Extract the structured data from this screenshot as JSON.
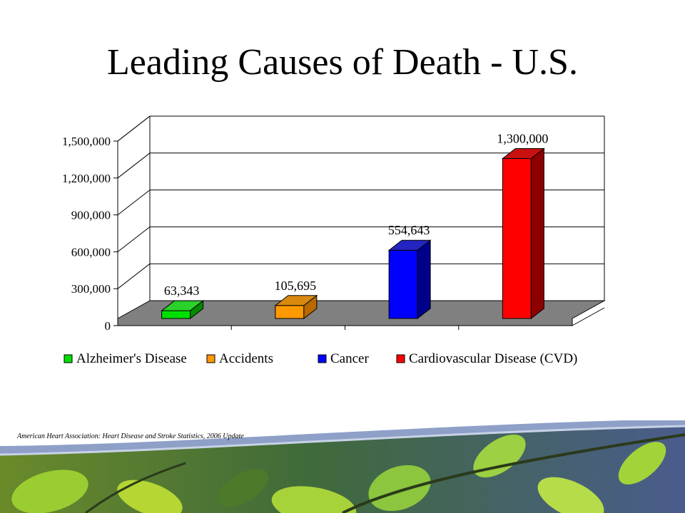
{
  "slide": {
    "title": "Leading Causes of Death - U.S.",
    "source": "American Heart Association: Heart Disease and Stroke Statistics, 2006 Update"
  },
  "chart_data": {
    "type": "bar",
    "title": "",
    "xlabel": "",
    "ylabel": "",
    "ylim": [
      0,
      1500000
    ],
    "yticks": [
      0,
      300000,
      600000,
      900000,
      1200000,
      1500000
    ],
    "ytick_labels": [
      "0",
      "300,000",
      "600,000",
      "900,000",
      "1,200,000",
      "1,500,000"
    ],
    "categories": [
      "Alzheimer's Disease",
      "Accidents",
      "Cancer",
      "Cardiovascular Disease (CVD)"
    ],
    "values": [
      63343,
      105695,
      554643,
      1300000
    ],
    "data_labels": [
      "63,343",
      "105,695",
      "554,643",
      "1,300,000"
    ],
    "colors": [
      "#00e000",
      "#ff9900",
      "#0000ff",
      "#ff0000"
    ],
    "side_colors": [
      "#008c00",
      "#b86a00",
      "#00008a",
      "#8c0000"
    ],
    "top_colors": [
      "#2ad12a",
      "#d88a10",
      "#2424c0",
      "#c81010"
    ],
    "legend_position": "bottom",
    "grid": true,
    "style": "3d"
  }
}
